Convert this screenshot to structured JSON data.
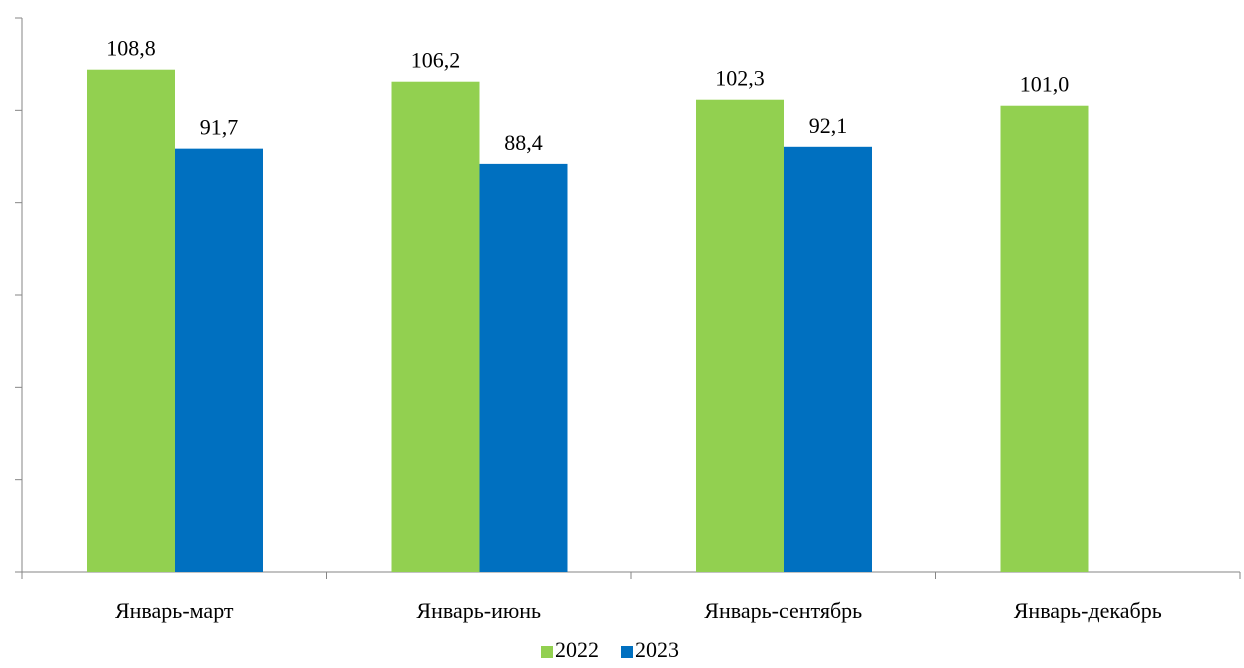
{
  "chart_data": {
    "type": "bar",
    "title": "",
    "xlabel": "",
    "ylabel": "",
    "categories": [
      "Январь-март",
      "Январь-июнь",
      "Январь-сентябрь",
      "Январь-декабрь"
    ],
    "series": [
      {
        "name": "2022",
        "color": "#92D050",
        "values": [
          108.8,
          106.2,
          102.3,
          101.0
        ],
        "labels": [
          "108,8",
          "106,2",
          "102,3",
          "101,0"
        ]
      },
      {
        "name": "2023",
        "color": "#0070C0",
        "values": [
          91.7,
          88.4,
          92.1,
          null
        ],
        "labels": [
          "91,7",
          "88,4",
          "92,1",
          ""
        ]
      }
    ],
    "ylim": [
      0,
      120
    ],
    "y_ticks": [
      0,
      20,
      40,
      60,
      80,
      100,
      120
    ],
    "y_tick_labels_visible": false,
    "grid": false,
    "legend_position": "bottom"
  }
}
